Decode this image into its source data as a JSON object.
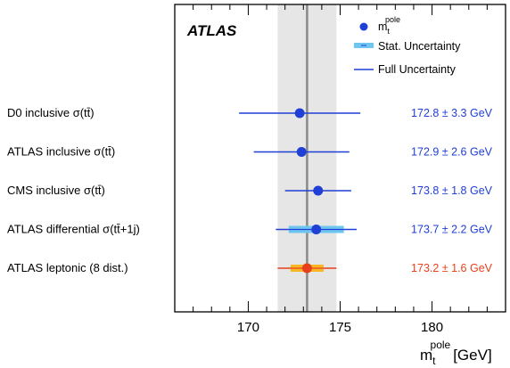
{
  "chart_data": {
    "type": "scatter",
    "experiment_label": "ATLAS",
    "xlabel": "m",
    "xlabel_sub": "t",
    "xlabel_sup": "pole",
    "xlabel_unit": "[GeV]",
    "xlim": [
      166,
      184
    ],
    "xticks": [
      170,
      175,
      180
    ],
    "average": {
      "value": 173.2,
      "band": [
        171.6,
        174.8
      ]
    },
    "legend": {
      "marker_label": "m",
      "marker_sub": "t",
      "marker_sup": "pole",
      "stat_label": "Stat. Uncertainty",
      "full_label": "Full Uncertainty"
    },
    "measurements": [
      {
        "label": "D0 inclusive σ(tt̄)",
        "value": 172.8,
        "full_err": 3.3,
        "stat_err": null,
        "value_text": "172.8 ± 3.3 GeV",
        "color": "#1f3fd6",
        "stat_color": "#6ec6f0"
      },
      {
        "label": "ATLAS inclusive σ(tt̄)",
        "value": 172.9,
        "full_err": 2.6,
        "stat_err": null,
        "value_text": "172.9 ± 2.6 GeV",
        "color": "#1f3fd6",
        "stat_color": "#6ec6f0"
      },
      {
        "label": "CMS inclusive σ(tt̄)",
        "value": 173.8,
        "full_err": 1.8,
        "stat_err": null,
        "value_text": "173.8 ± 1.8 GeV",
        "color": "#1f3fd6",
        "stat_color": "#6ec6f0"
      },
      {
        "label": "ATLAS differential σ(tt̄+1j)",
        "value": 173.7,
        "full_err": 2.2,
        "stat_err": 1.5,
        "value_text": "173.7 ± 2.2 GeV",
        "color": "#1f3fd6",
        "stat_color": "#6ec6f0"
      },
      {
        "label": "ATLAS leptonic (8 dist.)",
        "value": 173.2,
        "full_err": 1.6,
        "stat_err": 0.9,
        "value_text": "173.2 ± 1.6 GeV",
        "color": "#e8401c",
        "stat_color": "#f7b825"
      }
    ]
  }
}
